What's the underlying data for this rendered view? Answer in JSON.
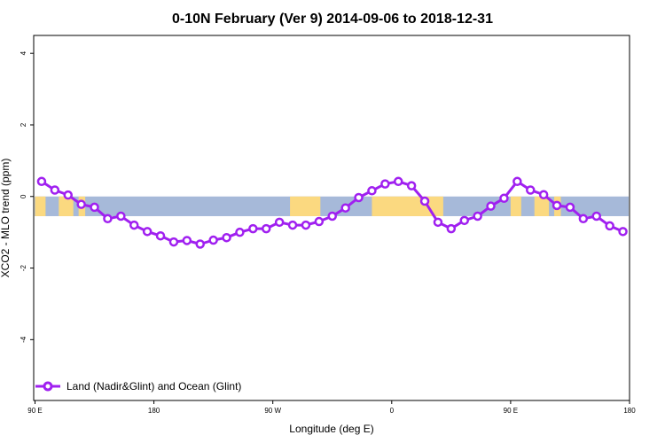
{
  "chart_data": {
    "type": "line",
    "title": "0-10N February (Ver 9)   2014-09-06 to 2018-12-31",
    "xlabel": "Longitude (deg E)",
    "ylabel": "XCO2 - MLO trend (ppm)",
    "xlim": [
      89,
      540
    ],
    "ylim": [
      -5.7,
      4.5
    ],
    "x_ticks": [
      {
        "value": 90,
        "label": "90 E"
      },
      {
        "value": 180,
        "label": "180"
      },
      {
        "value": 270,
        "label": "90 W"
      },
      {
        "value": 360,
        "label": "0"
      },
      {
        "value": 450,
        "label": "90 E"
      },
      {
        "value": 540,
        "label": "180"
      }
    ],
    "y_ticks": [
      -4,
      -2,
      0,
      2,
      4
    ],
    "band": {
      "ymin": -0.55,
      "ymax": 0
    },
    "land_regions": [
      {
        "x0": 90,
        "x1": 98
      },
      {
        "x0": 108,
        "x1": 119
      },
      {
        "x0": 123,
        "x1": 128
      },
      {
        "x0": 283,
        "x1": 306
      },
      {
        "x0": 345,
        "x1": 399
      },
      {
        "x0": 450,
        "x1": 458
      },
      {
        "x0": 468,
        "x1": 479
      },
      {
        "x0": 483,
        "x1": 488
      }
    ],
    "series": [
      {
        "name": "Land (Nadir&Glint) and Ocean (Glint)",
        "color": "#a020f0",
        "x": [
          95,
          105,
          115,
          125,
          135,
          145,
          155,
          165,
          175,
          185,
          195,
          205,
          215,
          225,
          235,
          245,
          255,
          265,
          275,
          285,
          295,
          305,
          315,
          325,
          335,
          345,
          355,
          365,
          375,
          385,
          395,
          405,
          415,
          425,
          435,
          445,
          455,
          465,
          475,
          485,
          495,
          505,
          515,
          525,
          535
        ],
        "y": [
          0.42,
          0.18,
          0.04,
          -0.22,
          -0.3,
          -0.62,
          -0.55,
          -0.8,
          -0.98,
          -1.1,
          -1.27,
          -1.23,
          -1.33,
          -1.22,
          -1.15,
          -1.0,
          -0.9,
          -0.9,
          -0.72,
          -0.8,
          -0.8,
          -0.7,
          -0.55,
          -0.32,
          -0.03,
          0.16,
          0.35,
          0.42,
          0.3,
          -0.13,
          -0.72,
          -0.9,
          -0.67,
          -0.55,
          -0.27,
          -0.05,
          0.42,
          0.18,
          0.05,
          -0.25,
          -0.3,
          -0.62,
          -0.55,
          -0.82,
          -0.98
        ]
      }
    ],
    "legend_position": "bottom-left",
    "colors": {
      "ocean": "#a6b9d9",
      "land": "#fbd980",
      "line": "#a020f0"
    }
  }
}
